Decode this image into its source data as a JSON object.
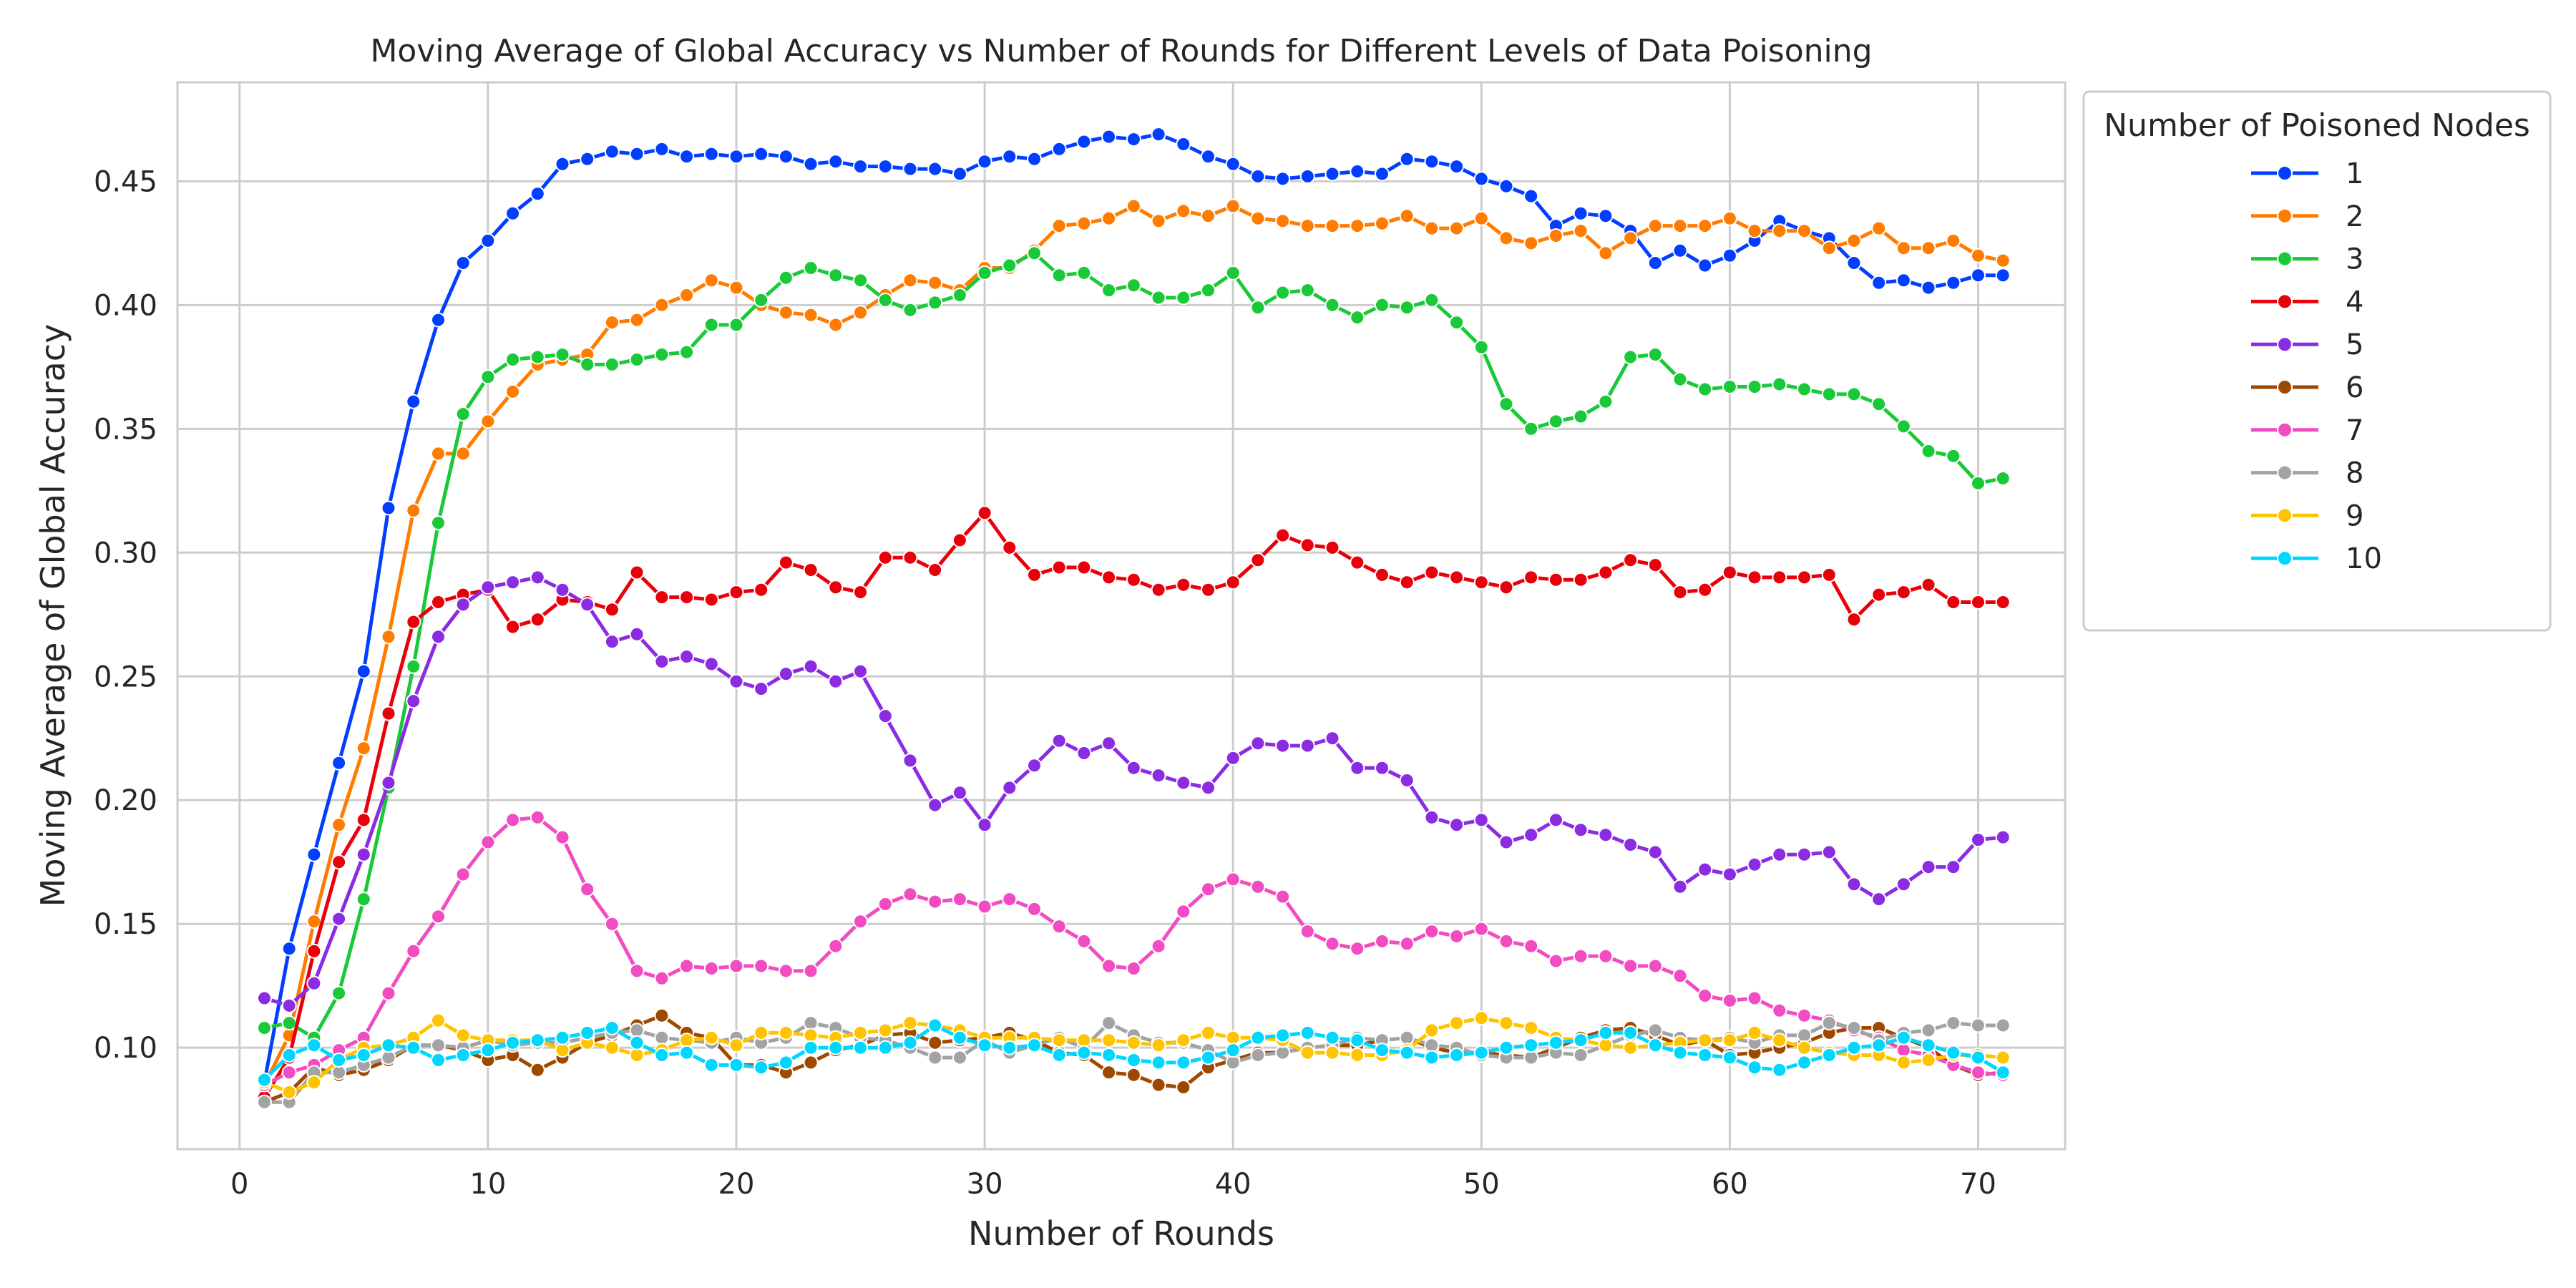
{
  "chart_data": {
    "type": "line",
    "title": "Moving Average of Global Accuracy vs Number of Rounds for Different Levels of Data Poisoning",
    "xlabel": "Number of Rounds",
    "ylabel": "Moving Average of Global Accuracy",
    "xlim": [
      -2.5,
      73.5
    ],
    "ylim": [
      0.059,
      0.49
    ],
    "xticks": [
      "0",
      "10",
      "20",
      "30",
      "40",
      "50",
      "60",
      "70"
    ],
    "yticks": [
      "0.10",
      "0.15",
      "0.20",
      "0.25",
      "0.30",
      "0.35",
      "0.40",
      "0.45"
    ],
    "grid": true,
    "legend": {
      "title": "Number of Poisoned Nodes",
      "placement": "outside-top-right"
    },
    "series": [
      {
        "name": "1",
        "color": "#023eff",
        "values": [
          0.086,
          0.14,
          0.178,
          0.215,
          0.252,
          0.318,
          0.361,
          0.394,
          0.417,
          0.426,
          0.437,
          0.445,
          0.457,
          0.459,
          0.462,
          0.461,
          0.463,
          0.46,
          0.461,
          0.46,
          0.461,
          0.46,
          0.457,
          0.458,
          0.456,
          0.456,
          0.455,
          0.455,
          0.453,
          0.458,
          0.46,
          0.459,
          0.463,
          0.466,
          0.468,
          0.467,
          0.469,
          0.465,
          0.46,
          0.457,
          0.452,
          0.451,
          0.452,
          0.453,
          0.454,
          0.453,
          0.459,
          0.458,
          0.456,
          0.451,
          0.448,
          0.444,
          0.432,
          0.437,
          0.436,
          0.43,
          0.417,
          0.422,
          0.416,
          0.42,
          0.426,
          0.434,
          0.43,
          0.427,
          0.417,
          0.409,
          0.41,
          0.407,
          0.409,
          0.412,
          0.412
        ]
      },
      {
        "name": "2",
        "color": "#ff7c00",
        "values": [
          0.085,
          0.105,
          0.151,
          0.19,
          0.221,
          0.266,
          0.317,
          0.34,
          0.34,
          0.353,
          0.365,
          0.376,
          0.378,
          0.38,
          0.393,
          0.394,
          0.4,
          0.404,
          0.41,
          0.407,
          0.4,
          0.397,
          0.396,
          0.392,
          0.397,
          0.404,
          0.41,
          0.409,
          0.406,
          0.415,
          0.415,
          0.422,
          0.432,
          0.433,
          0.435,
          0.44,
          0.434,
          0.438,
          0.436,
          0.44,
          0.435,
          0.434,
          0.432,
          0.432,
          0.432,
          0.433,
          0.436,
          0.431,
          0.431,
          0.435,
          0.427,
          0.425,
          0.428,
          0.43,
          0.421,
          0.427,
          0.432,
          0.432,
          0.432,
          0.435,
          0.43,
          0.43,
          0.43,
          0.423,
          0.426,
          0.431,
          0.423,
          0.423,
          0.426,
          0.42,
          0.418
        ]
      },
      {
        "name": "3",
        "color": "#1ac938",
        "values": [
          0.108,
          0.11,
          0.104,
          0.122,
          0.16,
          0.205,
          0.254,
          0.312,
          0.356,
          0.371,
          0.378,
          0.379,
          0.38,
          0.376,
          0.376,
          0.378,
          0.38,
          0.381,
          0.392,
          0.392,
          0.402,
          0.411,
          0.415,
          0.412,
          0.41,
          0.402,
          0.398,
          0.401,
          0.404,
          0.413,
          0.416,
          0.421,
          0.412,
          0.413,
          0.406,
          0.408,
          0.403,
          0.403,
          0.406,
          0.413,
          0.399,
          0.405,
          0.406,
          0.4,
          0.395,
          0.4,
          0.399,
          0.402,
          0.393,
          0.383,
          0.36,
          0.35,
          0.353,
          0.355,
          0.361,
          0.379,
          0.38,
          0.37,
          0.366,
          0.367,
          0.367,
          0.368,
          0.366,
          0.364,
          0.364,
          0.36,
          0.351,
          0.341,
          0.339,
          0.328,
          0.33
        ]
      },
      {
        "name": "4",
        "color": "#e8000b",
        "values": [
          0.08,
          0.096,
          0.139,
          0.175,
          0.192,
          0.235,
          0.272,
          0.28,
          0.283,
          0.285,
          0.27,
          0.273,
          0.281,
          0.28,
          0.277,
          0.292,
          0.282,
          0.282,
          0.281,
          0.284,
          0.285,
          0.296,
          0.293,
          0.286,
          0.284,
          0.298,
          0.298,
          0.293,
          0.305,
          0.316,
          0.302,
          0.291,
          0.294,
          0.294,
          0.29,
          0.289,
          0.285,
          0.287,
          0.285,
          0.288,
          0.297,
          0.307,
          0.303,
          0.302,
          0.296,
          0.291,
          0.288,
          0.292,
          0.29,
          0.288,
          0.286,
          0.29,
          0.289,
          0.289,
          0.292,
          0.297,
          0.295,
          0.284,
          0.285,
          0.292,
          0.29,
          0.29,
          0.29,
          0.291,
          0.273,
          0.283,
          0.284,
          0.287,
          0.28,
          0.28,
          0.28
        ]
      },
      {
        "name": "5",
        "color": "#8b2be2",
        "values": [
          0.12,
          0.117,
          0.126,
          0.152,
          0.178,
          0.207,
          0.24,
          0.266,
          0.279,
          0.286,
          0.288,
          0.29,
          0.285,
          0.279,
          0.264,
          0.267,
          0.256,
          0.258,
          0.255,
          0.248,
          0.245,
          0.251,
          0.254,
          0.248,
          0.252,
          0.234,
          0.216,
          0.198,
          0.203,
          0.19,
          0.205,
          0.214,
          0.224,
          0.219,
          0.223,
          0.213,
          0.21,
          0.207,
          0.205,
          0.217,
          0.223,
          0.222,
          0.222,
          0.225,
          0.213,
          0.213,
          0.208,
          0.193,
          0.19,
          0.192,
          0.183,
          0.186,
          0.192,
          0.188,
          0.186,
          0.182,
          0.179,
          0.165,
          0.172,
          0.17,
          0.174,
          0.178,
          0.178,
          0.179,
          0.166,
          0.16,
          0.166,
          0.173,
          0.173,
          0.184,
          0.185
        ]
      },
      {
        "name": "6",
        "color": "#9f4800",
        "values": [
          0.078,
          0.082,
          0.092,
          0.089,
          0.091,
          0.095,
          0.101,
          0.101,
          0.099,
          0.095,
          0.097,
          0.091,
          0.096,
          0.102,
          0.105,
          0.109,
          0.113,
          0.106,
          0.104,
          0.093,
          0.093,
          0.09,
          0.094,
          0.099,
          0.101,
          0.105,
          0.106,
          0.102,
          0.103,
          0.104,
          0.106,
          0.103,
          0.098,
          0.097,
          0.09,
          0.089,
          0.085,
          0.084,
          0.092,
          0.095,
          0.098,
          0.098,
          0.1,
          0.101,
          0.101,
          0.103,
          0.104,
          0.1,
          0.098,
          0.098,
          0.097,
          0.096,
          0.1,
          0.104,
          0.107,
          0.108,
          0.105,
          0.101,
          0.103,
          0.097,
          0.098,
          0.1,
          0.102,
          0.106,
          0.108,
          0.108,
          0.104,
          0.1,
          0.093,
          0.089,
          0.09
        ]
      },
      {
        "name": "7",
        "color": "#f14cc1",
        "values": [
          0.085,
          0.09,
          0.093,
          0.099,
          0.104,
          0.122,
          0.139,
          0.153,
          0.17,
          0.183,
          0.192,
          0.193,
          0.185,
          0.164,
          0.15,
          0.131,
          0.128,
          0.133,
          0.132,
          0.133,
          0.133,
          0.131,
          0.131,
          0.141,
          0.151,
          0.158,
          0.162,
          0.159,
          0.16,
          0.157,
          0.16,
          0.156,
          0.149,
          0.143,
          0.133,
          0.132,
          0.141,
          0.155,
          0.164,
          0.168,
          0.165,
          0.161,
          0.147,
          0.142,
          0.14,
          0.143,
          0.142,
          0.147,
          0.145,
          0.148,
          0.143,
          0.141,
          0.135,
          0.137,
          0.137,
          0.133,
          0.133,
          0.129,
          0.121,
          0.119,
          0.12,
          0.115,
          0.113,
          0.111,
          0.107,
          0.104,
          0.099,
          0.097,
          0.093,
          0.09,
          0.089
        ]
      },
      {
        "name": "8",
        "color": "#a3a3a3",
        "values": [
          0.078,
          0.078,
          0.09,
          0.09,
          0.093,
          0.096,
          0.101,
          0.101,
          0.1,
          0.103,
          0.101,
          0.102,
          0.102,
          0.104,
          0.106,
          0.107,
          0.104,
          0.103,
          0.102,
          0.104,
          0.102,
          0.104,
          0.11,
          0.108,
          0.104,
          0.103,
          0.1,
          0.096,
          0.096,
          0.103,
          0.098,
          0.101,
          0.104,
          0.1,
          0.11,
          0.105,
          0.102,
          0.102,
          0.099,
          0.094,
          0.097,
          0.098,
          0.1,
          0.101,
          0.104,
          0.103,
          0.104,
          0.101,
          0.1,
          0.097,
          0.096,
          0.096,
          0.098,
          0.097,
          0.101,
          0.105,
          0.107,
          0.104,
          0.103,
          0.104,
          0.102,
          0.105,
          0.105,
          0.11,
          0.108,
          0.103,
          0.106,
          0.107,
          0.11,
          0.109,
          0.109
        ]
      },
      {
        "name": "9",
        "color": "#ffc400",
        "values": [
          0.086,
          0.082,
          0.086,
          0.095,
          0.1,
          0.101,
          0.104,
          0.111,
          0.105,
          0.103,
          0.103,
          0.103,
          0.099,
          0.102,
          0.1,
          0.097,
          0.099,
          0.103,
          0.104,
          0.101,
          0.106,
          0.106,
          0.105,
          0.104,
          0.106,
          0.107,
          0.11,
          0.109,
          0.107,
          0.104,
          0.104,
          0.104,
          0.103,
          0.103,
          0.103,
          0.102,
          0.101,
          0.103,
          0.106,
          0.104,
          0.104,
          0.103,
          0.098,
          0.098,
          0.097,
          0.097,
          0.099,
          0.107,
          0.11,
          0.112,
          0.11,
          0.108,
          0.104,
          0.103,
          0.101,
          0.1,
          0.101,
          0.102,
          0.103,
          0.103,
          0.106,
          0.103,
          0.1,
          0.098,
          0.097,
          0.097,
          0.094,
          0.095,
          0.097,
          0.097,
          0.096
        ]
      },
      {
        "name": "10",
        "color": "#00d7ff",
        "values": [
          0.087,
          0.097,
          0.101,
          0.095,
          0.097,
          0.101,
          0.1,
          0.095,
          0.097,
          0.099,
          0.102,
          0.103,
          0.104,
          0.106,
          0.108,
          0.102,
          0.097,
          0.098,
          0.093,
          0.093,
          0.092,
          0.094,
          0.1,
          0.1,
          0.1,
          0.1,
          0.102,
          0.109,
          0.104,
          0.101,
          0.1,
          0.101,
          0.097,
          0.098,
          0.097,
          0.095,
          0.094,
          0.094,
          0.096,
          0.099,
          0.104,
          0.105,
          0.106,
          0.104,
          0.103,
          0.099,
          0.098,
          0.096,
          0.097,
          0.098,
          0.1,
          0.101,
          0.102,
          0.103,
          0.106,
          0.106,
          0.101,
          0.098,
          0.097,
          0.096,
          0.092,
          0.091,
          0.094,
          0.097,
          0.1,
          0.101,
          0.104,
          0.101,
          0.098,
          0.096,
          0.09
        ]
      }
    ]
  }
}
